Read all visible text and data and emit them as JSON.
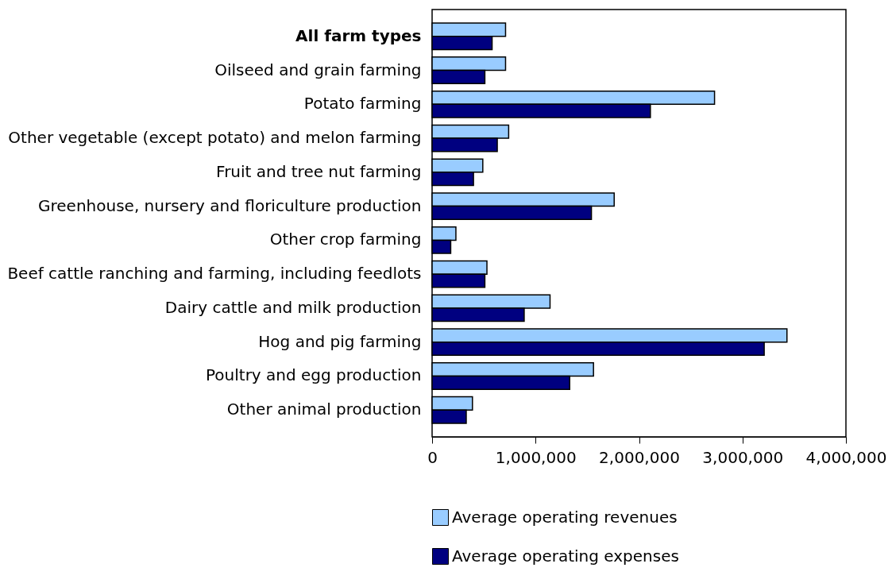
{
  "chart_data": {
    "type": "bar",
    "orientation": "horizontal",
    "categories": [
      "All farm types",
      "Oilseed and grain farming",
      "Potato farming",
      "Other vegetable (except potato) and melon farming",
      "Fruit and tree nut farming",
      "Greenhouse, nursery and floriculture production",
      "Other crop farming",
      "Beef cattle ranching and farming, including feedlots",
      "Dairy cattle and milk production",
      "Hog and pig farming",
      "Poultry and egg production",
      "Other animal production"
    ],
    "series": [
      {
        "name": "Average operating revenues",
        "color": "#99ccff",
        "values": [
          710000,
          710000,
          2730000,
          740000,
          490000,
          1760000,
          230000,
          530000,
          1140000,
          3430000,
          1560000,
          390000
        ]
      },
      {
        "name": "Average operating expenses",
        "color": "#000080",
        "values": [
          580000,
          510000,
          2110000,
          630000,
          400000,
          1540000,
          180000,
          510000,
          890000,
          3210000,
          1330000,
          330000
        ]
      }
    ],
    "xlim": [
      0,
      4000000
    ],
    "xticks": [
      0,
      {
        "value": 1000000,
        "label": "1,000,000"
      },
      {
        "value": 2000000,
        "label": "2,000,000"
      },
      {
        "value": 3000000,
        "label": "3,000,000"
      },
      {
        "value": 4000000,
        "label": "4,000,000"
      }
    ],
    "grid": false,
    "legend": "bottom"
  }
}
